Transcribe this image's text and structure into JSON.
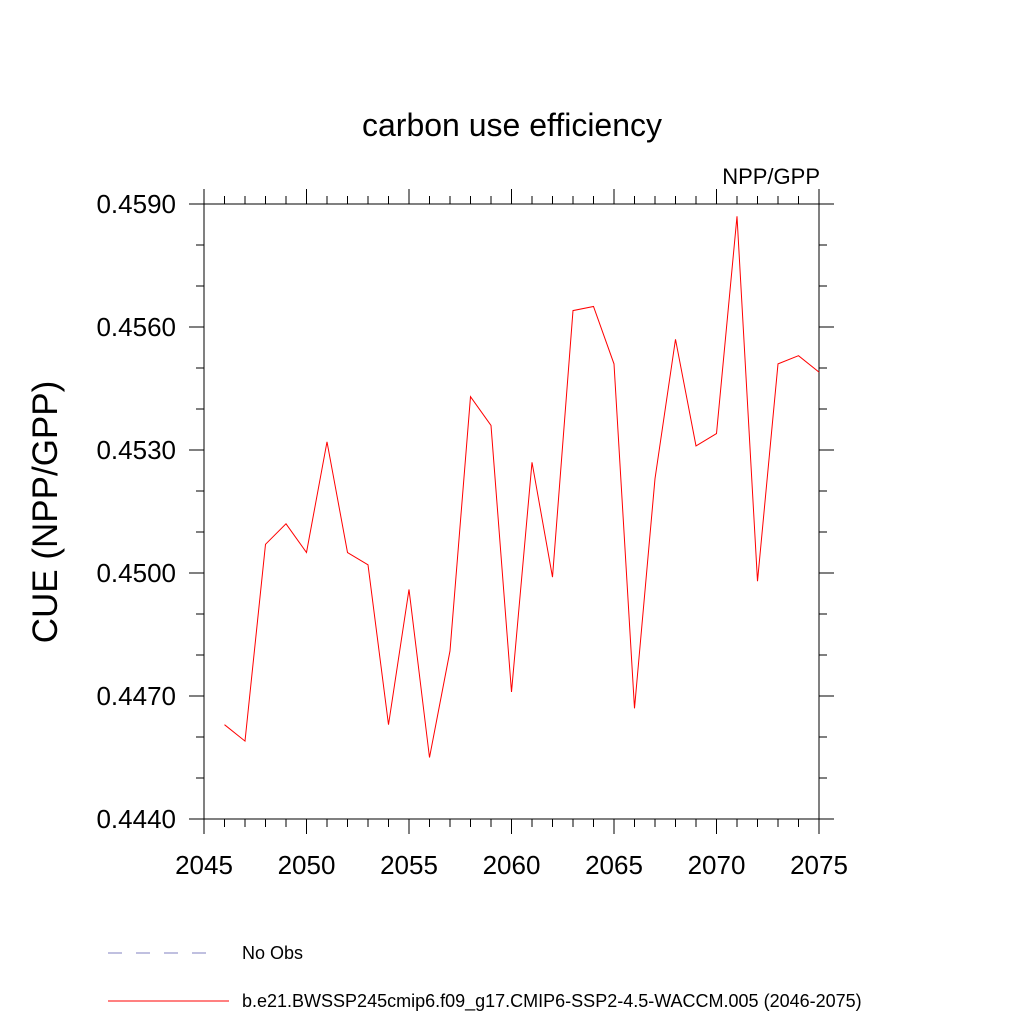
{
  "chart_data": {
    "type": "line",
    "title": "carbon use efficiency",
    "subtitle": "NPP/GPP",
    "xlabel": "",
    "ylabel": "CUE  (NPP/GPP)",
    "xlim": [
      2045,
      2075
    ],
    "ylim": [
      0.444,
      0.459
    ],
    "xticks": [
      "2045",
      "2050",
      "2055",
      "2060",
      "2065",
      "2070",
      "2075"
    ],
    "yticks": [
      "0.4440",
      "0.4470",
      "0.4500",
      "0.4530",
      "0.4560",
      "0.4590"
    ],
    "grid": false,
    "series": [
      {
        "name": "b.e21.BWSSP245cmip6.f09_g17.CMIP6-SSP2-4.5-WACCM.005 (2046-2075)",
        "color": "#ff0000",
        "x": [
          2046,
          2047,
          2048,
          2049,
          2050,
          2051,
          2052,
          2053,
          2054,
          2055,
          2056,
          2057,
          2058,
          2059,
          2060,
          2061,
          2062,
          2063,
          2064,
          2065,
          2066,
          2067,
          2068,
          2069,
          2070,
          2071,
          2072,
          2073,
          2074,
          2075
        ],
        "y": [
          0.4463,
          0.4459,
          0.4507,
          0.4512,
          0.4505,
          0.4532,
          0.4505,
          0.4502,
          0.4463,
          0.4496,
          0.4455,
          0.4481,
          0.4543,
          0.4536,
          0.4471,
          0.4527,
          0.4499,
          0.4564,
          0.4565,
          0.4551,
          0.4467,
          0.4523,
          0.4557,
          0.4531,
          0.4534,
          0.4587,
          0.4498,
          0.4551,
          0.4553,
          0.4549
        ]
      }
    ],
    "legend": {
      "placement": "bottom",
      "entries": [
        {
          "label": "No Obs",
          "color": "#8080c0",
          "style": "dashed"
        },
        {
          "label": "b.e21.BWSSP245cmip6.f09_g17.CMIP6-SSP2-4.5-WACCM.005 (2046-2075)",
          "color": "#ff0000",
          "style": "solid"
        }
      ]
    }
  }
}
